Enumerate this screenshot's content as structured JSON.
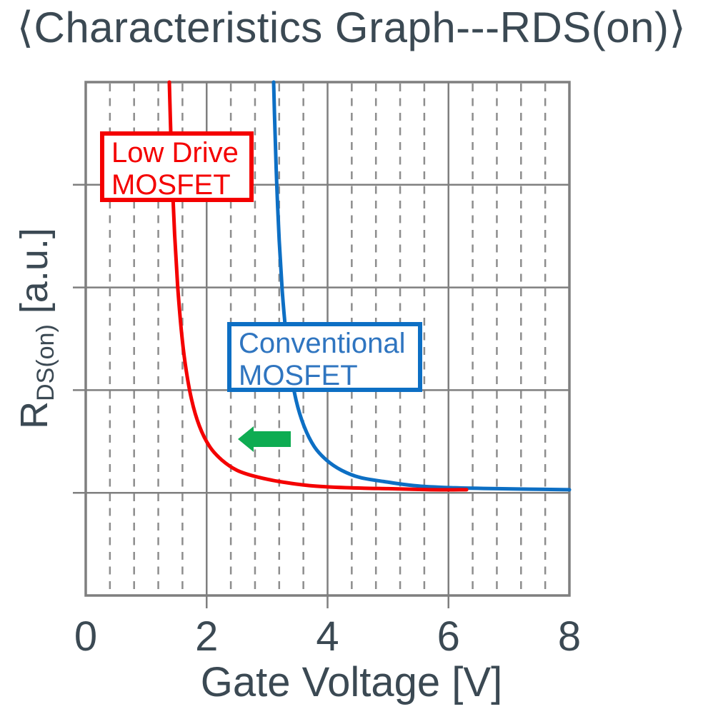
{
  "title": "⟨Characteristics Graph---RDS(on)⟩",
  "colors": {
    "dark_text": "#3B4953",
    "red_series": "#F40000",
    "blue_series": "#0D6FC4",
    "blue_label_text": "#2F75C0",
    "green_arrow": "#0EAC52",
    "grid_major": "#7F7F7F",
    "grid_minor": "#8D8D8D",
    "frame": "#7F7F7F"
  },
  "labels": {
    "red_box": {
      "line1": "Low Drive",
      "line2": "MOSFET"
    },
    "blue_box": {
      "line1": "Conventional",
      "line2": "MOSFET"
    },
    "y_axis": {
      "symbol": "R",
      "subscript": "DS(on)",
      "unit": " [a.u.]"
    },
    "x_axis": "Gate Voltage [V]"
  },
  "chart_data": {
    "type": "line",
    "title": "Characteristics Graph---RDS(on)",
    "xlabel": "Gate Voltage [V]",
    "ylabel": "RDS(on) [a.u.]",
    "xlim": [
      0,
      8
    ],
    "ylim": [
      0,
      5
    ],
    "x_ticks": [
      0,
      2,
      4,
      6,
      8
    ],
    "x_minor_step": 0.4,
    "y_major_divisions": 5,
    "grid": "solid major gridlines; dashed vertical minor gridlines every 0.4 V; no y tick labels (arbitrary units)",
    "legend_position": "in-plot labeled boxes",
    "annotations": [
      "green left-pointing arrow between curves indicating RDS(on) curve shifts to lower gate voltage"
    ],
    "series": [
      {
        "name": "Conventional MOSFET",
        "color": "#0D6FC4",
        "points": [
          [
            3.108,
            5.0
          ],
          [
            3.13,
            4.53
          ],
          [
            3.16,
            4.0
          ],
          [
            3.2,
            3.46
          ],
          [
            3.25,
            2.97
          ],
          [
            3.31,
            2.56
          ],
          [
            3.38,
            2.22
          ],
          [
            3.48,
            1.9
          ],
          [
            3.61,
            1.65
          ],
          [
            3.78,
            1.45
          ],
          [
            3.98,
            1.32
          ],
          [
            4.23,
            1.22
          ],
          [
            4.53,
            1.15
          ],
          [
            4.93,
            1.11
          ],
          [
            5.43,
            1.07
          ],
          [
            6.03,
            1.05
          ],
          [
            6.8,
            1.04
          ],
          [
            8.0,
            1.03
          ]
        ]
      },
      {
        "name": "Low Drive MOSFET",
        "color": "#F40000",
        "points": [
          [
            1.383,
            5.0
          ],
          [
            1.4,
            4.63
          ],
          [
            1.43,
            4.08
          ],
          [
            1.47,
            3.52
          ],
          [
            1.52,
            3.02
          ],
          [
            1.58,
            2.59
          ],
          [
            1.65,
            2.24
          ],
          [
            1.75,
            1.91
          ],
          [
            1.88,
            1.65
          ],
          [
            2.05,
            1.45
          ],
          [
            2.25,
            1.32
          ],
          [
            2.5,
            1.22
          ],
          [
            2.8,
            1.16
          ],
          [
            3.2,
            1.11
          ],
          [
            3.7,
            1.07
          ],
          [
            4.3,
            1.05
          ],
          [
            5.0,
            1.04
          ],
          [
            5.7,
            1.03
          ],
          [
            6.3,
            1.03
          ]
        ]
      }
    ]
  }
}
